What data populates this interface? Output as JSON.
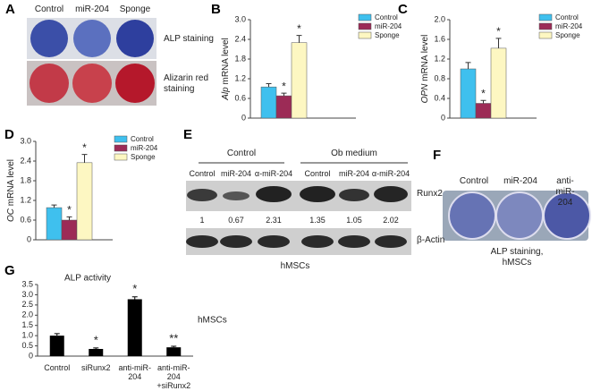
{
  "panel_a": {
    "letter": "A",
    "columns": [
      "Control",
      "miR-204",
      "Sponge"
    ],
    "rows": [
      "ALP staining",
      "Alizarin red staining"
    ]
  },
  "panel_e": {
    "letter": "E",
    "groups": [
      "Control",
      "Ob medium"
    ],
    "lanes": [
      "Control",
      "miR-204",
      "α-miR-204",
      "Control",
      "miR-204",
      "α-miR-204"
    ],
    "bands": [
      "Runx2",
      "β-Actin"
    ],
    "ratios": [
      1,
      0.67,
      2.31,
      1.35,
      1.05,
      2.02
    ],
    "caption": "hMSCs"
  },
  "panel_f": {
    "letter": "F",
    "columns": [
      "Control",
      "miR-204",
      "anti-miR-204"
    ],
    "caption": "ALP staining, hMSCs"
  },
  "chart_data": [
    {
      "type": "bar",
      "panel": "B",
      "ylabel_gene": "Alp",
      "ylabel": "mRNA level",
      "ylim": [
        0,
        3.0
      ],
      "yticks": [
        0,
        0.6,
        1.2,
        1.8,
        2.4,
        {
          "value": 3,
          "label": "3.0"
        }
      ],
      "series": [
        {
          "name": "Control",
          "color": "#3fc0ee",
          "values": [
            0.95
          ],
          "errors": [
            0.1
          ]
        },
        {
          "name": "miR-204",
          "color": "#9c2b56",
          "values": [
            0.68
          ],
          "errors": [
            0.08
          ],
          "annotation": "*"
        },
        {
          "name": "Sponge",
          "color": "#fdf7c2",
          "values": [
            2.3
          ],
          "errors": [
            0.22
          ],
          "annotation": "*"
        }
      ]
    },
    {
      "type": "bar",
      "panel": "C",
      "ylabel_gene": "OPN",
      "ylabel": "mRNA level",
      "ylim": [
        0,
        2.0
      ],
      "yticks": [
        0,
        0.4,
        0.8,
        1.2,
        1.6,
        {
          "value": 2,
          "label": "2.0"
        }
      ],
      "series": [
        {
          "name": "Control",
          "color": "#3fc0ee",
          "values": [
            1.0
          ],
          "errors": [
            0.13
          ]
        },
        {
          "name": "miR-204",
          "color": "#9c2b56",
          "values": [
            0.3
          ],
          "errors": [
            0.06
          ],
          "annotation": "*"
        },
        {
          "name": "Sponge",
          "color": "#fdf7c2",
          "values": [
            1.42
          ],
          "errors": [
            0.2
          ],
          "annotation": "*"
        }
      ]
    },
    {
      "type": "bar",
      "panel": "D",
      "ylabel_gene": "OC",
      "ylabel": "mRNA level",
      "ylim": [
        0,
        3.0
      ],
      "yticks": [
        0,
        0.6,
        1.2,
        1.8,
        2.4,
        {
          "value": 3,
          "label": "3.0"
        }
      ],
      "series": [
        {
          "name": "Control",
          "color": "#3fc0ee",
          "values": [
            0.98
          ],
          "errors": [
            0.08
          ]
        },
        {
          "name": "miR-204",
          "color": "#9c2b56",
          "values": [
            0.6
          ],
          "errors": [
            0.1
          ],
          "annotation": "*"
        },
        {
          "name": "Sponge",
          "color": "#fdf7c2",
          "values": [
            2.35
          ],
          "errors": [
            0.25
          ],
          "annotation": "*"
        }
      ]
    },
    {
      "type": "bar",
      "panel": "G",
      "title": "ALP activity",
      "note": "hMSCs",
      "ylim": [
        0,
        3.5
      ],
      "yticks": [
        0,
        0.5,
        {
          "value": 1,
          "label": "1.0"
        },
        1.5,
        {
          "value": 2,
          "label": "2.0"
        },
        2.5,
        {
          "value": 3,
          "label": "3.0"
        },
        3.5
      ],
      "categories": [
        "Control",
        "siRunx2",
        "anti-miR-204",
        "anti-miR-204 +siRunx2"
      ],
      "values": [
        1.0,
        0.35,
        2.78,
        0.43
      ],
      "errors": [
        0.1,
        0.05,
        0.12,
        0.05
      ],
      "color": "#000000",
      "annotations": [
        "*",
        "*",
        "**"
      ],
      "annotated": [
        1,
        2,
        3
      ]
    }
  ]
}
